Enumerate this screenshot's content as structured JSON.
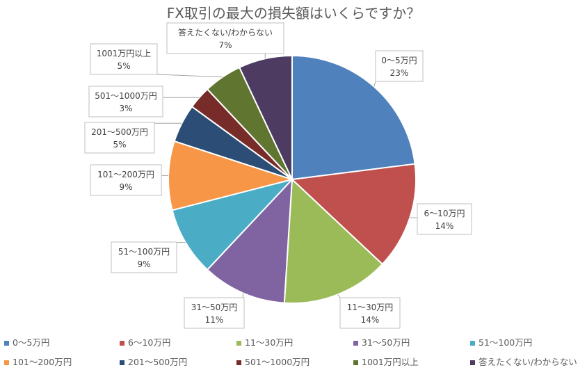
{
  "chart_data": {
    "type": "pie",
    "title": "FX取引の最大の損失額はいくらですか？",
    "slices": [
      {
        "label": "0～5万円",
        "value": 23,
        "pct_label": "23%",
        "color": "#4F81BD"
      },
      {
        "label": "6～10万円",
        "value": 14,
        "pct_label": "14%",
        "color": "#C0504D"
      },
      {
        "label": "11～30万円",
        "value": 14,
        "pct_label": "14%",
        "color": "#9BBB59"
      },
      {
        "label": "31～50万円",
        "value": 11,
        "pct_label": "11%",
        "color": "#8064A2"
      },
      {
        "label": "51～100万円",
        "value": 9,
        "pct_label": "9%",
        "color": "#4BACC6"
      },
      {
        "label": "101～200万円",
        "value": 9,
        "pct_label": "9%",
        "color": "#F79646"
      },
      {
        "label": "201～500万円",
        "value": 5,
        "pct_label": "5%",
        "color": "#2C4D75"
      },
      {
        "label": "501～1000万円",
        "value": 3,
        "pct_label": "3%",
        "color": "#772C2A"
      },
      {
        "label": "1001万円以上",
        "value": 5,
        "pct_label": "5%",
        "color": "#5F7530"
      },
      {
        "label": "答えたくない/わからない",
        "value": 7,
        "pct_label": "7%",
        "color": "#4D3B62"
      }
    ],
    "legend_position": "bottom"
  }
}
